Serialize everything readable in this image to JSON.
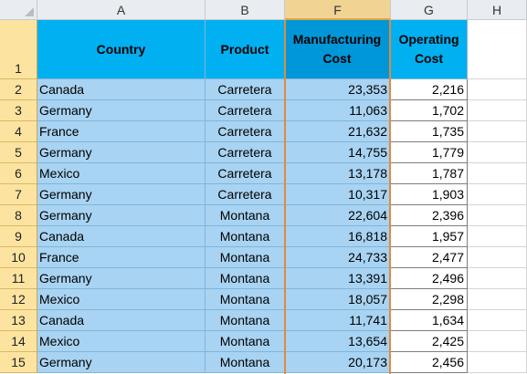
{
  "columns": [
    "A",
    "B",
    "F",
    "G",
    "H"
  ],
  "header_row_number": "1",
  "headers": {
    "country": "Country",
    "product": "Product",
    "manufacturing_line1": "Manufacturing",
    "manufacturing_line2": "Cost",
    "operating_line1": "Operating",
    "operating_line2": "Cost"
  },
  "rows": [
    {
      "n": "2",
      "country": "Canada",
      "product": "Carretera",
      "mfg": "23,353",
      "op": "2,216"
    },
    {
      "n": "3",
      "country": "Germany",
      "product": "Carretera",
      "mfg": "11,063",
      "op": "1,702"
    },
    {
      "n": "4",
      "country": "France",
      "product": "Carretera",
      "mfg": "21,632",
      "op": "1,735"
    },
    {
      "n": "5",
      "country": "Germany",
      "product": "Carretera",
      "mfg": "14,755",
      "op": "1,779"
    },
    {
      "n": "6",
      "country": "Mexico",
      "product": "Carretera",
      "mfg": "13,178",
      "op": "1,787"
    },
    {
      "n": "7",
      "country": "Germany",
      "product": "Carretera",
      "mfg": "10,317",
      "op": "1,903"
    },
    {
      "n": "8",
      "country": "Germany",
      "product": "Montana",
      "mfg": "22,604",
      "op": "2,396"
    },
    {
      "n": "9",
      "country": "Canada",
      "product": "Montana",
      "mfg": "16,818",
      "op": "1,957"
    },
    {
      "n": "10",
      "country": "France",
      "product": "Montana",
      "mfg": "24,733",
      "op": "2,477"
    },
    {
      "n": "11",
      "country": "Germany",
      "product": "Montana",
      "mfg": "13,391",
      "op": "2,496"
    },
    {
      "n": "12",
      "country": "Mexico",
      "product": "Montana",
      "mfg": "18,057",
      "op": "2,298"
    },
    {
      "n": "13",
      "country": "Canada",
      "product": "Montana",
      "mfg": "11,741",
      "op": "1,634"
    },
    {
      "n": "14",
      "country": "Mexico",
      "product": "Montana",
      "mfg": "13,654",
      "op": "2,425"
    },
    {
      "n": "15",
      "country": "Germany",
      "product": "Montana",
      "mfg": "20,173",
      "op": "2,456"
    }
  ],
  "colors": {
    "header_fill": "#00b0f0",
    "data_fill": "#a8d3f2",
    "selection_border": "#e08a3e",
    "row_header_fill": "#fce4a0"
  }
}
